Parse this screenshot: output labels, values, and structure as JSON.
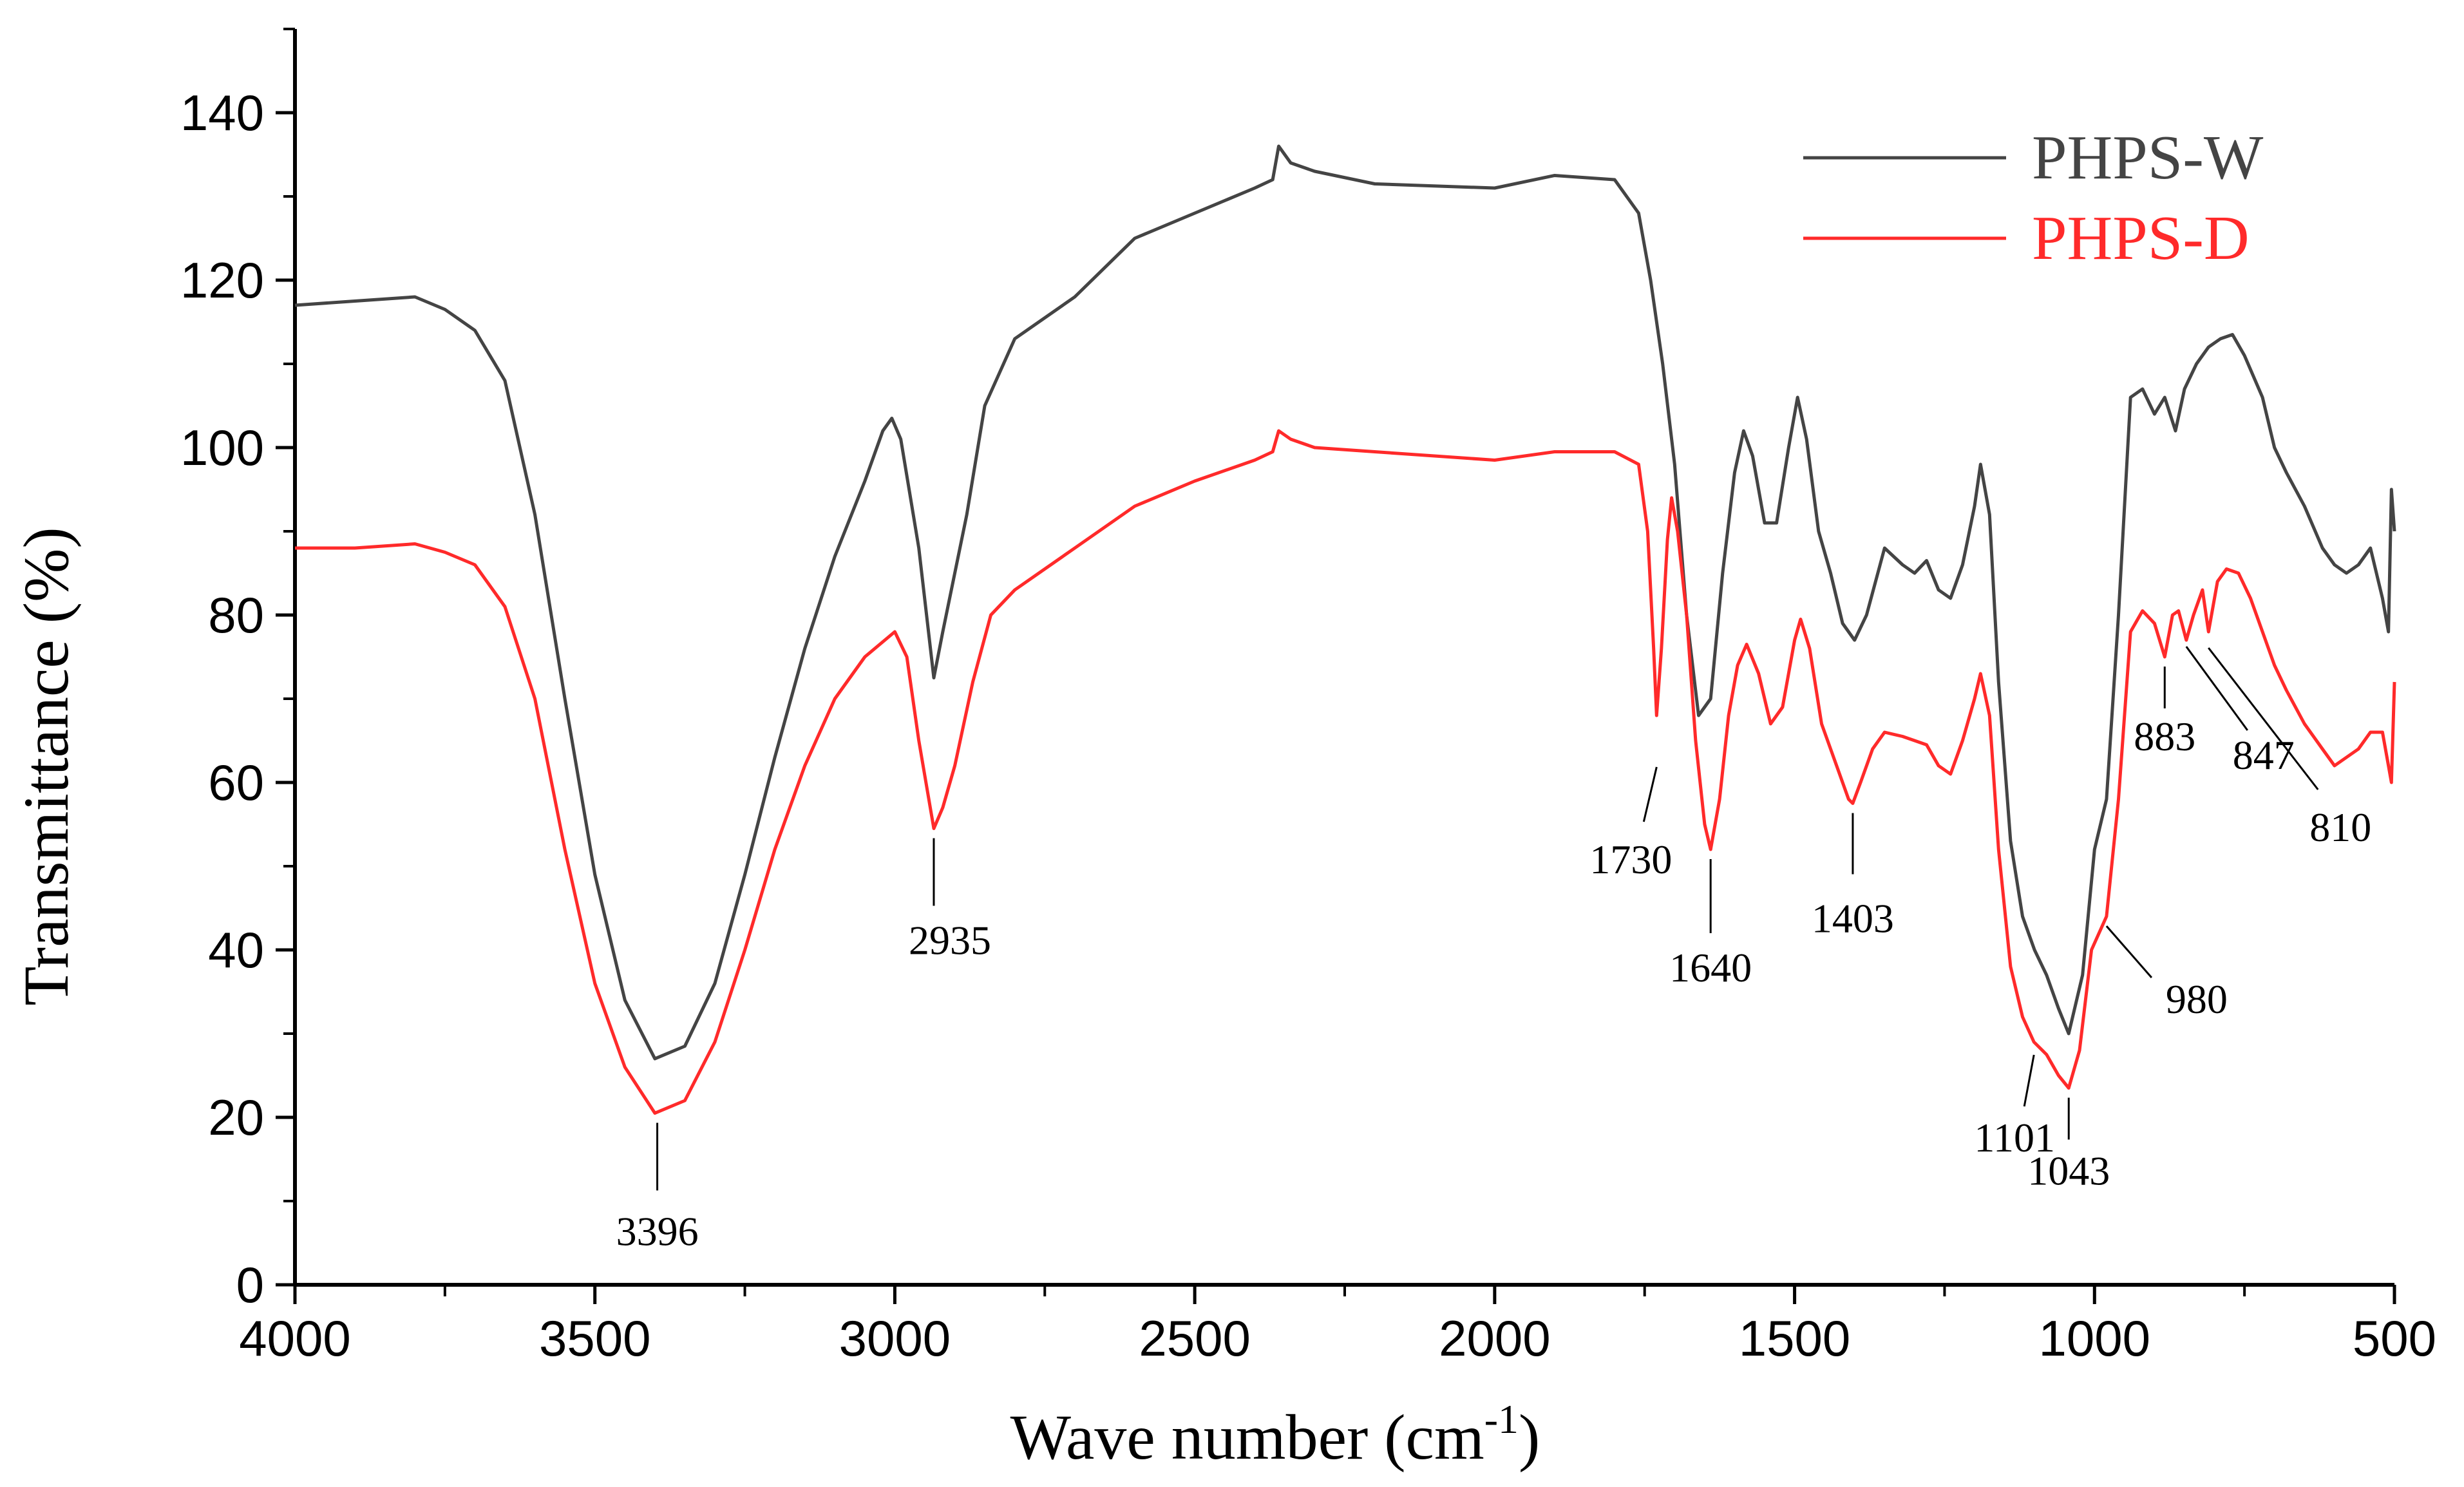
{
  "chart_data": {
    "type": "line",
    "title": "",
    "xlabel": "Wave number (cm",
    "xlabel_sup": "-1",
    "xlabel_close": ")",
    "ylabel": "Transmittance (%)",
    "xlim": [
      4000,
      500
    ],
    "ylim": [
      0,
      150
    ],
    "x_ticks": [
      4000,
      3500,
      3000,
      2500,
      2000,
      1500,
      1000,
      500
    ],
    "x_tick_labels": [
      "4000",
      "3500",
      "3000",
      "2500",
      "2000",
      "1500",
      "1000",
      "500"
    ],
    "y_ticks": [
      0,
      20,
      40,
      60,
      80,
      100,
      120,
      140
    ],
    "y_tick_labels": [
      "0",
      "20",
      "40",
      "60",
      "80",
      "100",
      "120",
      "140"
    ],
    "legend_position": "top-right",
    "series": [
      {
        "name": "PHPS-W",
        "color": "#444444",
        "points": [
          [
            4000,
            117
          ],
          [
            3900,
            117.5
          ],
          [
            3800,
            118
          ],
          [
            3750,
            116.5
          ],
          [
            3700,
            114
          ],
          [
            3650,
            108
          ],
          [
            3600,
            92
          ],
          [
            3550,
            70
          ],
          [
            3500,
            49
          ],
          [
            3450,
            34
          ],
          [
            3400,
            27
          ],
          [
            3350,
            28.5
          ],
          [
            3300,
            36
          ],
          [
            3250,
            49
          ],
          [
            3200,
            63
          ],
          [
            3150,
            76
          ],
          [
            3100,
            87
          ],
          [
            3050,
            96
          ],
          [
            3020,
            102
          ],
          [
            3005,
            103.5
          ],
          [
            2990,
            101
          ],
          [
            2960,
            88
          ],
          [
            2935,
            72.5
          ],
          [
            2920,
            78
          ],
          [
            2880,
            92
          ],
          [
            2850,
            105
          ],
          [
            2800,
            113
          ],
          [
            2700,
            118
          ],
          [
            2600,
            125
          ],
          [
            2500,
            128
          ],
          [
            2400,
            131
          ],
          [
            2370,
            132
          ],
          [
            2360,
            136
          ],
          [
            2340,
            134
          ],
          [
            2300,
            133
          ],
          [
            2200,
            131.5
          ],
          [
            2000,
            131
          ],
          [
            1900,
            132.5
          ],
          [
            1800,
            132
          ],
          [
            1760,
            128
          ],
          [
            1740,
            120
          ],
          [
            1720,
            110
          ],
          [
            1700,
            98
          ],
          [
            1680,
            80
          ],
          [
            1660,
            68
          ],
          [
            1640,
            70
          ],
          [
            1620,
            85
          ],
          [
            1600,
            97
          ],
          [
            1585,
            102
          ],
          [
            1570,
            99
          ],
          [
            1550,
            91
          ],
          [
            1530,
            91
          ],
          [
            1510,
            100
          ],
          [
            1495,
            106
          ],
          [
            1480,
            101
          ],
          [
            1460,
            90
          ],
          [
            1440,
            85
          ],
          [
            1420,
            79
          ],
          [
            1400,
            77
          ],
          [
            1380,
            80
          ],
          [
            1350,
            88
          ],
          [
            1320,
            86
          ],
          [
            1300,
            85
          ],
          [
            1280,
            86.5
          ],
          [
            1260,
            83
          ],
          [
            1240,
            82
          ],
          [
            1220,
            86
          ],
          [
            1200,
            93
          ],
          [
            1190,
            98
          ],
          [
            1175,
            92
          ],
          [
            1160,
            72
          ],
          [
            1140,
            53
          ],
          [
            1120,
            44
          ],
          [
            1100,
            40
          ],
          [
            1080,
            37
          ],
          [
            1060,
            33
          ],
          [
            1043,
            30
          ],
          [
            1020,
            37
          ],
          [
            1000,
            52
          ],
          [
            980,
            58
          ],
          [
            960,
            80
          ],
          [
            940,
            106
          ],
          [
            920,
            107
          ],
          [
            900,
            104
          ],
          [
            883,
            106
          ],
          [
            865,
            102
          ],
          [
            850,
            107
          ],
          [
            830,
            110
          ],
          [
            810,
            112
          ],
          [
            790,
            113
          ],
          [
            770,
            113.5
          ],
          [
            750,
            111
          ],
          [
            720,
            106
          ],
          [
            700,
            100
          ],
          [
            680,
            97
          ],
          [
            650,
            93
          ],
          [
            620,
            88
          ],
          [
            600,
            86
          ],
          [
            580,
            85
          ],
          [
            560,
            86
          ],
          [
            540,
            88
          ],
          [
            520,
            82
          ],
          [
            510,
            78
          ],
          [
            505,
            95
          ],
          [
            500,
            90
          ]
        ]
      },
      {
        "name": "PHPS-D",
        "color": "#ff2a2a",
        "points": [
          [
            4000,
            88
          ],
          [
            3900,
            88
          ],
          [
            3800,
            88.5
          ],
          [
            3750,
            87.5
          ],
          [
            3700,
            86
          ],
          [
            3650,
            81
          ],
          [
            3600,
            70
          ],
          [
            3550,
            52
          ],
          [
            3500,
            36
          ],
          [
            3450,
            26
          ],
          [
            3400,
            20.5
          ],
          [
            3350,
            22
          ],
          [
            3300,
            29
          ],
          [
            3250,
            40
          ],
          [
            3200,
            52
          ],
          [
            3150,
            62
          ],
          [
            3100,
            70
          ],
          [
            3050,
            75
          ],
          [
            3000,
            78
          ],
          [
            2980,
            75
          ],
          [
            2960,
            65
          ],
          [
            2935,
            54.5
          ],
          [
            2920,
            57
          ],
          [
            2900,
            62
          ],
          [
            2870,
            72
          ],
          [
            2840,
            80
          ],
          [
            2800,
            83
          ],
          [
            2700,
            88
          ],
          [
            2600,
            93
          ],
          [
            2500,
            96
          ],
          [
            2400,
            98.5
          ],
          [
            2370,
            99.5
          ],
          [
            2360,
            102
          ],
          [
            2340,
            101
          ],
          [
            2300,
            100
          ],
          [
            2200,
            99.5
          ],
          [
            2000,
            98.5
          ],
          [
            1900,
            99.5
          ],
          [
            1800,
            99.5
          ],
          [
            1760,
            98
          ],
          [
            1745,
            90
          ],
          [
            1735,
            76
          ],
          [
            1730,
            68
          ],
          [
            1722,
            76
          ],
          [
            1712,
            89
          ],
          [
            1705,
            94
          ],
          [
            1695,
            90
          ],
          [
            1680,
            80
          ],
          [
            1665,
            65
          ],
          [
            1650,
            55
          ],
          [
            1640,
            52
          ],
          [
            1625,
            58
          ],
          [
            1610,
            68
          ],
          [
            1595,
            74
          ],
          [
            1580,
            76.5
          ],
          [
            1560,
            73
          ],
          [
            1540,
            67
          ],
          [
            1520,
            69
          ],
          [
            1500,
            77
          ],
          [
            1490,
            79.5
          ],
          [
            1475,
            76
          ],
          [
            1455,
            67
          ],
          [
            1430,
            62
          ],
          [
            1410,
            58
          ],
          [
            1403,
            57.5
          ],
          [
            1390,
            60
          ],
          [
            1370,
            64
          ],
          [
            1350,
            66
          ],
          [
            1320,
            65.5
          ],
          [
            1300,
            65
          ],
          [
            1280,
            64.5
          ],
          [
            1260,
            62
          ],
          [
            1240,
            61
          ],
          [
            1220,
            65
          ],
          [
            1200,
            70
          ],
          [
            1190,
            73
          ],
          [
            1175,
            68
          ],
          [
            1160,
            52
          ],
          [
            1140,
            38
          ],
          [
            1120,
            32
          ],
          [
            1101,
            29
          ],
          [
            1080,
            27.5
          ],
          [
            1060,
            25
          ],
          [
            1043,
            23.5
          ],
          [
            1025,
            28
          ],
          [
            1005,
            40
          ],
          [
            980,
            44
          ],
          [
            960,
            58
          ],
          [
            940,
            78
          ],
          [
            920,
            80.5
          ],
          [
            900,
            79
          ],
          [
            883,
            75
          ],
          [
            870,
            80
          ],
          [
            860,
            80.5
          ],
          [
            847,
            77
          ],
          [
            835,
            80
          ],
          [
            820,
            83
          ],
          [
            810,
            78
          ],
          [
            795,
            84
          ],
          [
            780,
            85.5
          ],
          [
            760,
            85
          ],
          [
            740,
            82
          ],
          [
            720,
            78
          ],
          [
            700,
            74
          ],
          [
            680,
            71
          ],
          [
            650,
            67
          ],
          [
            620,
            64
          ],
          [
            600,
            62
          ],
          [
            580,
            63
          ],
          [
            560,
            64
          ],
          [
            540,
            66
          ],
          [
            520,
            66
          ],
          [
            510,
            62
          ],
          [
            505,
            60
          ],
          [
            500,
            72
          ]
        ]
      }
    ],
    "annotations": [
      {
        "label": "3396",
        "x": 3396,
        "y": 20.5
      },
      {
        "label": "2935",
        "x": 2935,
        "y": 54.5
      },
      {
        "label": "1730",
        "x": 1730,
        "y": 68
      },
      {
        "label": "1640",
        "x": 1640,
        "y": 52
      },
      {
        "label": "1403",
        "x": 1403,
        "y": 57.5
      },
      {
        "label": "1101",
        "x": 1101,
        "y": 29
      },
      {
        "label": "1043",
        "x": 1043,
        "y": 23.5
      },
      {
        "label": "980",
        "x": 980,
        "y": 44
      },
      {
        "label": "883",
        "x": 883,
        "y": 75
      },
      {
        "label": "847",
        "x": 847,
        "y": 77
      },
      {
        "label": "810",
        "x": 810,
        "y": 78
      }
    ]
  }
}
